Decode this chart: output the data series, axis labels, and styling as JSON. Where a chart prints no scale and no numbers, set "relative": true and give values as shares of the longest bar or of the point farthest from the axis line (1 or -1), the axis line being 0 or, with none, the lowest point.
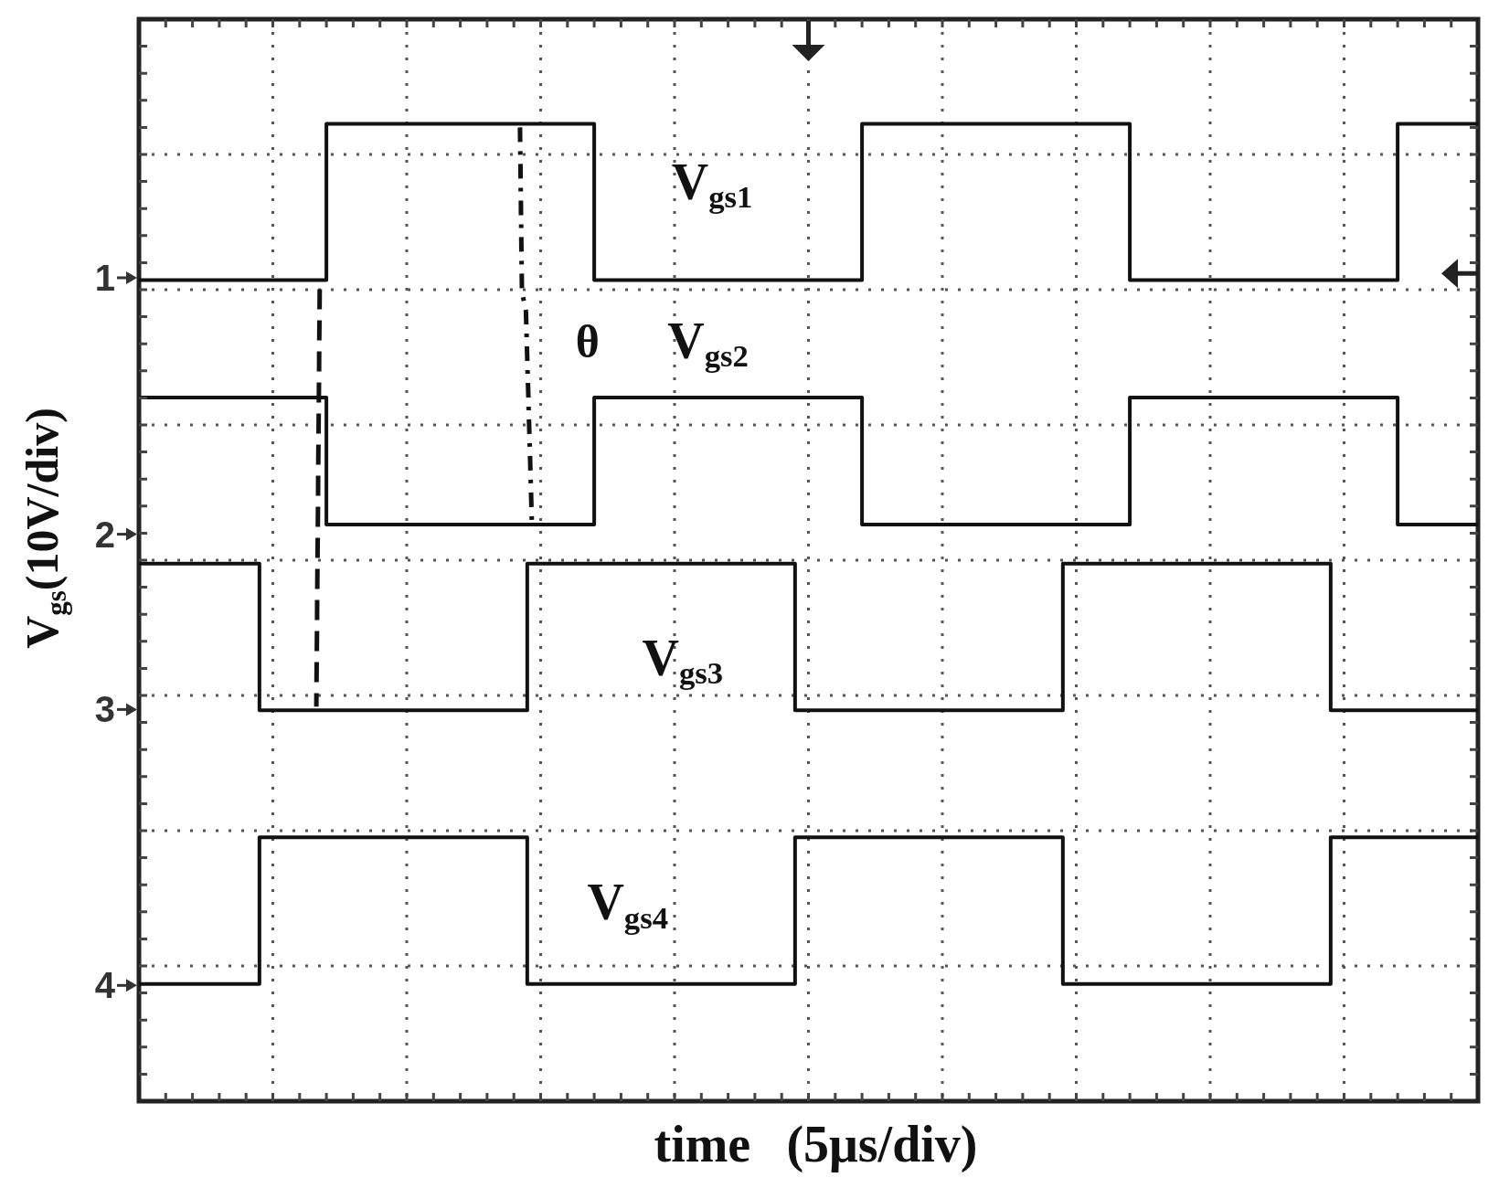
{
  "chart_data": {
    "type": "step",
    "xlabel": "time (5μs/div)",
    "ylabel": "V$_{gs}$(10V/div)",
    "relative": true,
    "grid": true,
    "categories": [
      null,
      null,
      null,
      null,
      null,
      null,
      null,
      null,
      null,
      null,
      null,
      null,
      null,
      null,
      null,
      null,
      null,
      null,
      null,
      null,
      null,
      null,
      null,
      null,
      null,
      null,
      null,
      null,
      null,
      null,
      null,
      null,
      null,
      null,
      null,
      null,
      null,
      null,
      null,
      null,
      null,
      null,
      null,
      null,
      null,
      null,
      null,
      null,
      null,
      null,
      null,
      null,
      null,
      null,
      null,
      null,
      null,
      null,
      null,
      null,
      null,
      null,
      null,
      null,
      null,
      null,
      null,
      null,
      null,
      null,
      null,
      null,
      null,
      null,
      null,
      null,
      null,
      null,
      null,
      null,
      null,
      null,
      null,
      null,
      null,
      null,
      null,
      null,
      null,
      null,
      null,
      null,
      null,
      null,
      null,
      null,
      null,
      null,
      null,
      null,
      null
    ],
    "series": [
      {
        "name": "V$_{gs1}$",
        "color": "#111111",
        "values": [
          0.84,
          0.84,
          0.84,
          0.84,
          0.84,
          0.84,
          0.84,
          0.84,
          0.84,
          0.84,
          0.84,
          0.84,
          0.84,
          0.84,
          1,
          1,
          1,
          1,
          1,
          1,
          1,
          1,
          1,
          1,
          1,
          1,
          1,
          1,
          1,
          1,
          1,
          1,
          1,
          1,
          0.84,
          0.84,
          0.84,
          0.84,
          0.84,
          0.84,
          0.84,
          0.84,
          0.84,
          0.84,
          0.84,
          0.84,
          0.84,
          0.84,
          0.84,
          0.84,
          0.84,
          0.84,
          0.84,
          0.84,
          1,
          1,
          1,
          1,
          1,
          1,
          1,
          1,
          1,
          1,
          1,
          1,
          1,
          1,
          1,
          1,
          1,
          1,
          1,
          1,
          0.84,
          0.84,
          0.84,
          0.84,
          0.84,
          0.84,
          0.84,
          0.84,
          0.84,
          0.84,
          0.84,
          0.84,
          0.84,
          0.84,
          0.84,
          0.84,
          0.84,
          0.84,
          0.84,
          0.84,
          1,
          1,
          1,
          1,
          1,
          1,
          1
        ]
      },
      {
        "name": "V$_{gs2}$",
        "color": "#111111",
        "values": [
          0.72,
          0.72,
          0.72,
          0.72,
          0.72,
          0.72,
          0.72,
          0.72,
          0.72,
          0.72,
          0.72,
          0.72,
          0.72,
          0.72,
          0.59,
          0.59,
          0.59,
          0.59,
          0.59,
          0.59,
          0.59,
          0.59,
          0.59,
          0.59,
          0.59,
          0.59,
          0.59,
          0.59,
          0.59,
          0.59,
          0.59,
          0.59,
          0.59,
          0.59,
          0.72,
          0.72,
          0.72,
          0.72,
          0.72,
          0.72,
          0.72,
          0.72,
          0.72,
          0.72,
          0.72,
          0.72,
          0.72,
          0.72,
          0.72,
          0.72,
          0.72,
          0.72,
          0.72,
          0.72,
          0.59,
          0.59,
          0.59,
          0.59,
          0.59,
          0.59,
          0.59,
          0.59,
          0.59,
          0.59,
          0.59,
          0.59,
          0.59,
          0.59,
          0.59,
          0.59,
          0.59,
          0.59,
          0.59,
          0.59,
          0.72,
          0.72,
          0.72,
          0.72,
          0.72,
          0.72,
          0.72,
          0.72,
          0.72,
          0.72,
          0.72,
          0.72,
          0.72,
          0.72,
          0.72,
          0.72,
          0.72,
          0.72,
          0.72,
          0.72,
          0.59,
          0.59,
          0.59,
          0.59,
          0.59,
          0.59,
          0.59
        ]
      },
      {
        "name": "V$_{gs3}$",
        "color": "#111111",
        "values": [
          0.55,
          0.55,
          0.55,
          0.55,
          0.55,
          0.55,
          0.55,
          0.55,
          0.55,
          0.4,
          0.4,
          0.4,
          0.4,
          0.4,
          0.4,
          0.4,
          0.4,
          0.4,
          0.4,
          0.4,
          0.4,
          0.4,
          0.4,
          0.4,
          0.4,
          0.4,
          0.4,
          0.4,
          0.4,
          0.55,
          0.55,
          0.55,
          0.55,
          0.55,
          0.55,
          0.55,
          0.55,
          0.55,
          0.55,
          0.55,
          0.55,
          0.55,
          0.55,
          0.55,
          0.55,
          0.55,
          0.55,
          0.55,
          0.55,
          0.4,
          0.4,
          0.4,
          0.4,
          0.4,
          0.4,
          0.4,
          0.4,
          0.4,
          0.4,
          0.4,
          0.4,
          0.4,
          0.4,
          0.4,
          0.4,
          0.4,
          0.4,
          0.4,
          0.4,
          0.55,
          0.55,
          0.55,
          0.55,
          0.55,
          0.55,
          0.55,
          0.55,
          0.55,
          0.55,
          0.55,
          0.55,
          0.55,
          0.55,
          0.55,
          0.55,
          0.55,
          0.55,
          0.55,
          0.55,
          0.4,
          0.4,
          0.4,
          0.4,
          0.4,
          0.4,
          0.4,
          0.4,
          0.4,
          0.4,
          0.4,
          0.4
        ]
      },
      {
        "name": "V$_{gs4}$",
        "color": "#111111",
        "values": [
          0.12,
          0.12,
          0.12,
          0.12,
          0.12,
          0.12,
          0.12,
          0.12,
          0.12,
          0.27,
          0.27,
          0.27,
          0.27,
          0.27,
          0.27,
          0.27,
          0.27,
          0.27,
          0.27,
          0.27,
          0.27,
          0.27,
          0.27,
          0.27,
          0.27,
          0.27,
          0.27,
          0.27,
          0.27,
          0.12,
          0.12,
          0.12,
          0.12,
          0.12,
          0.12,
          0.12,
          0.12,
          0.12,
          0.12,
          0.12,
          0.12,
          0.12,
          0.12,
          0.12,
          0.12,
          0.12,
          0.12,
          0.12,
          0.12,
          0.27,
          0.27,
          0.27,
          0.27,
          0.27,
          0.27,
          0.27,
          0.27,
          0.27,
          0.27,
          0.27,
          0.27,
          0.27,
          0.27,
          0.27,
          0.27,
          0.27,
          0.27,
          0.27,
          0.27,
          0.12,
          0.12,
          0.12,
          0.12,
          0.12,
          0.12,
          0.12,
          0.12,
          0.12,
          0.12,
          0.12,
          0.12,
          0.12,
          0.12,
          0.12,
          0.12,
          0.12,
          0.12,
          0.12,
          0.12,
          0.27,
          0.27,
          0.27,
          0.27,
          0.27,
          0.27,
          0.27,
          0.27,
          0.27,
          0.27,
          0.27,
          0.27
        ]
      }
    ],
    "annotations": [
      "1",
      "2",
      "3",
      "4",
      "θ"
    ]
  }
}
